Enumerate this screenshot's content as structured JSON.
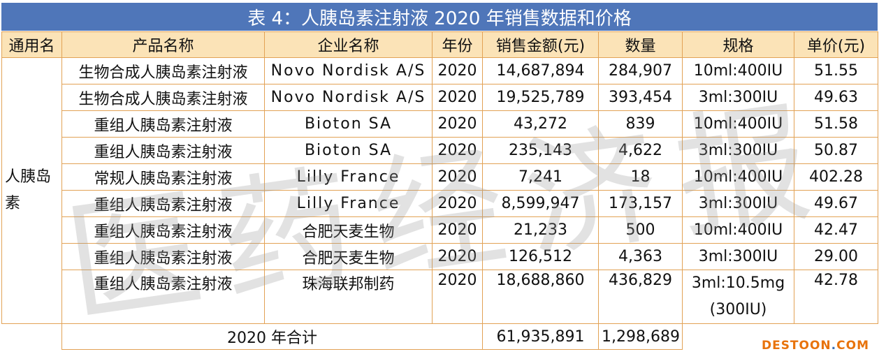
{
  "title": "表 4：人胰岛素注射液 2020 年销售数据和价格",
  "headers": [
    "通用名",
    "产品名称",
    "企业名称",
    "年份",
    "销售金额(元)",
    "数量",
    "规格",
    "单价(元)"
  ],
  "category": "人胰岛素",
  "rows": [
    {
      "product": "生物合成人胰岛素注射液",
      "company": "Novo Nordisk A/S",
      "year": "2020",
      "amount": "14,687,894",
      "qty": "284,907",
      "spec": "10ml:400IU",
      "price": "51.55"
    },
    {
      "product": "生物合成人胰岛素注射液",
      "company": "Novo Nordisk A/S",
      "year": "2020",
      "amount": "19,525,789",
      "qty": "393,454",
      "spec": "3ml:300IU",
      "price": "49.63"
    },
    {
      "product": "重组人胰岛素注射液",
      "company": "Bioton SA",
      "year": "2020",
      "amount": "43,272",
      "qty": "839",
      "spec": "10ml:400IU",
      "price": "51.58"
    },
    {
      "product": "重组人胰岛素注射液",
      "company": "Bioton SA",
      "year": "2020",
      "amount": "235,143",
      "qty": "4,622",
      "spec": "3ml:300IU",
      "price": "50.87"
    },
    {
      "product": "常规人胰岛素注射液",
      "company": "Lilly France",
      "year": "2020",
      "amount": "7,241",
      "qty": "18",
      "spec": "10ml:400IU",
      "price": "402.28"
    },
    {
      "product": "重组人胰岛素注射液",
      "company": "Lilly France",
      "year": "2020",
      "amount": "8,599,947",
      "qty": "173,157",
      "spec": "3ml:300IU",
      "price": "49.67"
    },
    {
      "product": "重组人胰岛素注射液",
      "company": "合肥天麦生物",
      "year": "2020",
      "amount": "21,233",
      "qty": "500",
      "spec": "10ml:400IU",
      "price": "42.47"
    },
    {
      "product": "重组人胰岛素注射液",
      "company": "合肥天麦生物",
      "year": "2020",
      "amount": "126,512",
      "qty": "4,363",
      "spec": "3ml:300IU",
      "price": "29.00"
    },
    {
      "product": "重组人胰岛素注射液",
      "company": "珠海联邦制药",
      "year": "2020",
      "amount": "18,688,860",
      "qty": "436,829",
      "spec": "3ml:10.5mg (300IU)",
      "price": "42.78"
    }
  ],
  "total": {
    "label": "2020 年合计",
    "amount": "61,935,891",
    "qty": "1,298,689"
  },
  "watermark": "医药经济报",
  "brand": {
    "main": "DESTOON",
    "dot": ".",
    "tld": "COM"
  },
  "colors": {
    "title_bg": "#4f76b9",
    "header_bg": "#fbe3b7",
    "border": "#e2a255",
    "brand": "#e8730c"
  }
}
